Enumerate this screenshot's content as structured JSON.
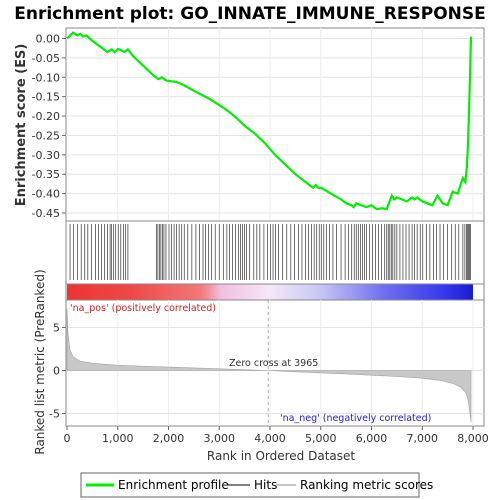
{
  "chart_data": {
    "type": "line",
    "title": "Enrichment plot: GO_INNATE_IMMUNE_RESPONSE",
    "es_panel": {
      "ylabel": "Enrichment score (ES)",
      "ylim": [
        -0.47,
        0.02
      ],
      "yticks": [
        "0.00",
        "-0.05",
        "-0.10",
        "-0.15",
        "-0.20",
        "-0.25",
        "-0.30",
        "-0.35",
        "-0.40",
        "-0.45"
      ],
      "ytick_values": [
        0.0,
        -0.05,
        -0.1,
        -0.15,
        -0.2,
        -0.25,
        -0.3,
        -0.35,
        -0.4,
        -0.45
      ],
      "series": [
        {
          "name": "Enrichment profile",
          "color": "#00ee00",
          "x": [
            0,
            120,
            200,
            260,
            320,
            380,
            450,
            560,
            700,
            800,
            880,
            940,
            1000,
            1060,
            1130,
            1200,
            1300,
            1500,
            1700,
            1800,
            1870,
            1900,
            1950,
            2050,
            2150,
            2300,
            2500,
            2800,
            3100,
            3300,
            3500,
            3700,
            3900,
            4100,
            4300,
            4500,
            4700,
            4850,
            4900,
            4950,
            5000,
            5100,
            5200,
            5400,
            5500,
            5600,
            5650,
            5700,
            5800,
            5900,
            6000,
            6100,
            6200,
            6300,
            6400,
            6450,
            6500,
            6600,
            6700,
            6800,
            6850,
            6900,
            7000,
            7100,
            7200,
            7300,
            7400,
            7500,
            7600,
            7700,
            7800,
            7850,
            7880,
            7900,
            7920,
            7940,
            7960
          ],
          "values": [
            0.0,
            0.015,
            0.008,
            0.012,
            0.005,
            0.008,
            0.0,
            -0.012,
            -0.025,
            -0.035,
            -0.028,
            -0.035,
            -0.027,
            -0.03,
            -0.035,
            -0.028,
            -0.045,
            -0.07,
            -0.095,
            -0.105,
            -0.1,
            -0.103,
            -0.108,
            -0.11,
            -0.112,
            -0.12,
            -0.135,
            -0.155,
            -0.18,
            -0.2,
            -0.225,
            -0.245,
            -0.27,
            -0.3,
            -0.325,
            -0.35,
            -0.37,
            -0.385,
            -0.378,
            -0.385,
            -0.385,
            -0.392,
            -0.4,
            -0.415,
            -0.425,
            -0.43,
            -0.435,
            -0.425,
            -0.43,
            -0.435,
            -0.43,
            -0.44,
            -0.438,
            -0.44,
            -0.405,
            -0.415,
            -0.41,
            -0.415,
            -0.42,
            -0.41,
            -0.415,
            -0.41,
            -0.42,
            -0.425,
            -0.43,
            -0.405,
            -0.425,
            -0.43,
            -0.395,
            -0.4,
            -0.36,
            -0.37,
            -0.33,
            -0.28,
            -0.2,
            -0.1,
            0.005
          ]
        }
      ]
    },
    "hits_panel": {
      "hit_positions": [
        60,
        130,
        210,
        280,
        350,
        410,
        480,
        560,
        620,
        680,
        740,
        800,
        850,
        880,
        920,
        960,
        1010,
        1060,
        1110,
        1150,
        1200,
        1760,
        1790,
        1820,
        1850,
        1880,
        1910,
        1950,
        2010,
        2060,
        2110,
        2160,
        2210,
        2260,
        2310,
        2380,
        2460,
        2540,
        2610,
        2680,
        2730,
        2790,
        2850,
        2920,
        3000,
        3080,
        3150,
        3200,
        3260,
        3320,
        3380,
        3420,
        3460,
        3500,
        3540,
        3600,
        3680,
        3740,
        3800,
        3880,
        3950,
        4010,
        4060,
        4110,
        4170,
        4250,
        4330,
        4410,
        4480,
        4560,
        4630,
        4700,
        4760,
        4820,
        4870,
        4920,
        4970,
        5010,
        5060,
        5110,
        5170,
        5240,
        5310,
        5400,
        5480,
        5550,
        5610,
        5660,
        5700,
        5740,
        5780,
        5820,
        5860,
        5900,
        5960,
        6020,
        6080,
        6140,
        6200,
        6260,
        6300,
        6330,
        6360,
        6390,
        6420,
        6460,
        6500,
        6560,
        6620,
        6680,
        6740,
        6800,
        6850,
        6900,
        6960,
        7010,
        7080,
        7150,
        7220,
        7280,
        7350,
        7420,
        7500,
        7580,
        7650,
        7720,
        7800,
        7840,
        7870,
        7890,
        7910,
        7930,
        7950
      ]
    },
    "ranking_panel": {
      "ylabel": "Ranked list metric (PreRanked)",
      "ylim": [
        -6.5,
        7.5
      ],
      "yticks": [
        "5",
        "0",
        "-5"
      ],
      "ytick_values": [
        5,
        0,
        -5
      ],
      "color": "#c8c8c8",
      "x": [
        0,
        20,
        60,
        120,
        250,
        500,
        1000,
        2000,
        3000,
        3965,
        4500,
        5500,
        6500,
        7000,
        7400,
        7600,
        7750,
        7850,
        7900,
        7930,
        7960
      ],
      "values": [
        7.2,
        4.2,
        2.4,
        1.6,
        1.1,
        0.85,
        0.6,
        0.4,
        0.2,
        0.0,
        -0.15,
        -0.4,
        -0.7,
        -0.9,
        -1.2,
        -1.5,
        -1.9,
        -2.5,
        -3.3,
        -4.5,
        -6.0
      ],
      "pos_label": "'na_pos' (positively correlated)",
      "neg_label": "'na_neg' (negatively correlated)",
      "zero_cross_label": "Zero cross at 3965",
      "zero_cross": 3965
    },
    "xlabel": "Rank in Ordered Dataset",
    "xlim": [
      0,
      8200
    ],
    "xticks": [
      "0",
      "1,000",
      "2,000",
      "3,000",
      "4,000",
      "5,000",
      "6,000",
      "7,000",
      "8,000"
    ],
    "xtick_values": [
      0,
      1000,
      2000,
      3000,
      4000,
      5000,
      6000,
      7000,
      8000
    ],
    "n_genes": 7960,
    "legend": {
      "placement": "bottom",
      "items": [
        {
          "label": "Enrichment profile",
          "color": "#00ee00"
        },
        {
          "label": "Hits",
          "color": "#808080"
        },
        {
          "label": "Ranking metric scores",
          "color": "#c8c8c8"
        }
      ]
    },
    "colors": {
      "pos_text": "#d02020",
      "neg_text": "#2020d0",
      "bar_pos": "#ee3333",
      "bar_mid": "#f0c0e0",
      "bar_neg": "#3333ee"
    }
  }
}
